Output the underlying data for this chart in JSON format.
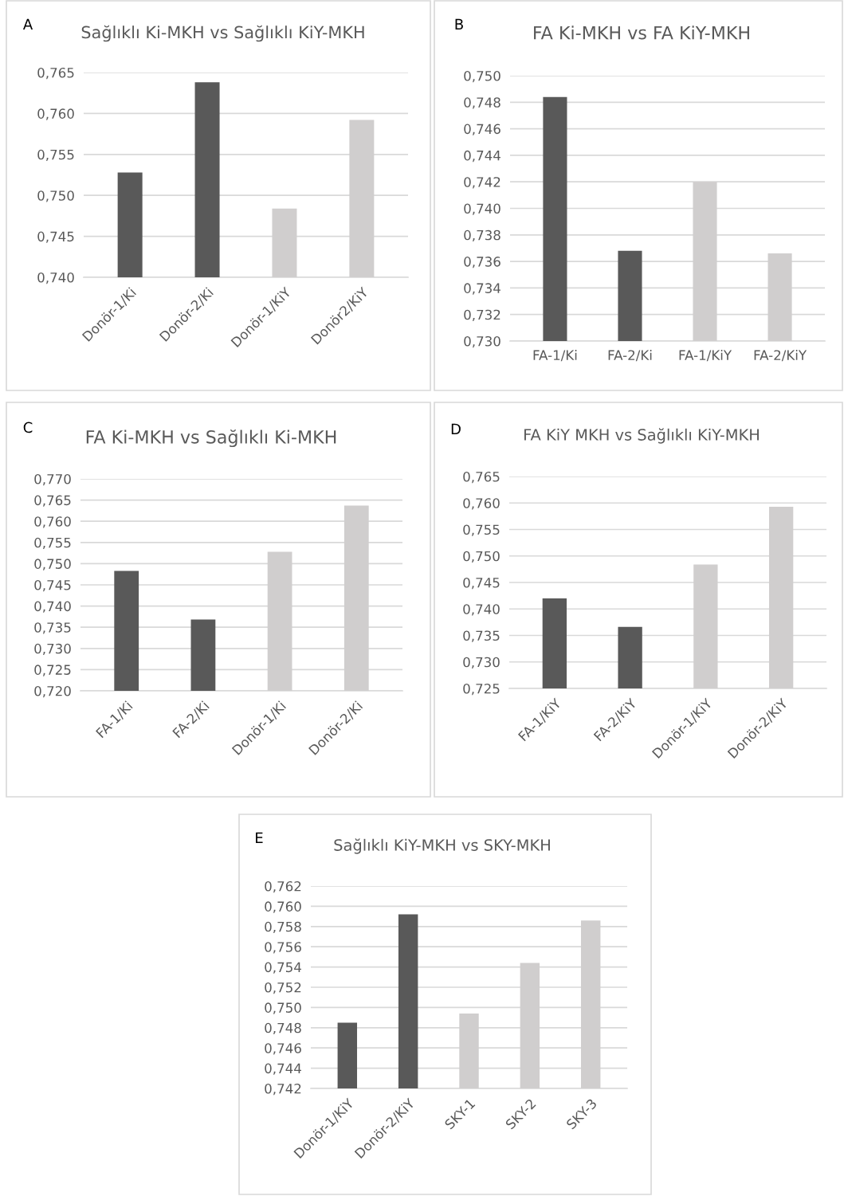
{
  "chart_data": [
    {
      "type": "bar",
      "title": "Sağlıklı Ki-MKH vs Sağlıklı KiY-MKH",
      "annotations": [
        "A"
      ],
      "categories": [
        "Donör-1/Ki",
        "Donör-2/Ki",
        "Donör-1/KiY",
        "Donör2/KiY"
      ],
      "values": [
        0.7528,
        0.7638,
        0.7484,
        0.7592
      ],
      "colors": [
        "#595959",
        "#595959",
        "#d0cece",
        "#d0cece"
      ],
      "ylim": [
        0.74,
        0.765
      ],
      "yticks": [
        {
          "value": 0.74,
          "label": "0,740"
        },
        {
          "value": 0.745,
          "label": "0,745"
        },
        {
          "value": 0.75,
          "label": "0,750"
        },
        {
          "value": 0.755,
          "label": "0,755"
        },
        {
          "value": 0.76,
          "label": "0,760"
        },
        {
          "value": 0.765,
          "label": "0,765"
        }
      ],
      "grid": "y"
    },
    {
      "type": "bar",
      "title": "FA Ki-MKH vs FA KiY-MKH",
      "annotations": [
        "B"
      ],
      "categories": [
        "FA-1/Ki",
        "FA-2/Ki",
        "FA-1/KiY",
        "FA-2/KiY"
      ],
      "values": [
        0.7484,
        0.7368,
        0.742,
        0.7366
      ],
      "colors": [
        "#595959",
        "#595959",
        "#d0cece",
        "#d0cece"
      ],
      "ylim": [
        0.73,
        0.75
      ],
      "yticks": [
        {
          "value": 0.73,
          "label": "0,730"
        },
        {
          "value": 0.732,
          "label": "0,732"
        },
        {
          "value": 0.734,
          "label": "0,734"
        },
        {
          "value": 0.736,
          "label": "0,736"
        },
        {
          "value": 0.738,
          "label": "0,738"
        },
        {
          "value": 0.74,
          "label": "0,740"
        },
        {
          "value": 0.742,
          "label": "0,742"
        },
        {
          "value": 0.744,
          "label": "0,744"
        },
        {
          "value": 0.746,
          "label": "0,746"
        },
        {
          "value": 0.748,
          "label": "0,748"
        },
        {
          "value": 0.75,
          "label": "0,750"
        }
      ],
      "grid": "y"
    },
    {
      "type": "bar",
      "title": "FA Ki-MKH vs Sağlıklı Ki-MKH",
      "annotations": [
        "C"
      ],
      "categories": [
        "FA-1/Ki",
        "FA-2/Ki",
        "Donör-1/Ki",
        "Donör-2/Ki"
      ],
      "values": [
        0.7483,
        0.7368,
        0.7528,
        0.7637
      ],
      "colors": [
        "#595959",
        "#595959",
        "#d0cece",
        "#d0cece"
      ],
      "ylim": [
        0.72,
        0.77
      ],
      "yticks": [
        {
          "value": 0.72,
          "label": "0,720"
        },
        {
          "value": 0.725,
          "label": "0,725"
        },
        {
          "value": 0.73,
          "label": "0,730"
        },
        {
          "value": 0.735,
          "label": "0,735"
        },
        {
          "value": 0.74,
          "label": "0,740"
        },
        {
          "value": 0.745,
          "label": "0,745"
        },
        {
          "value": 0.75,
          "label": "0,750"
        },
        {
          "value": 0.755,
          "label": "0,755"
        },
        {
          "value": 0.76,
          "label": "0,760"
        },
        {
          "value": 0.765,
          "label": "0,765"
        },
        {
          "value": 0.77,
          "label": "0,770"
        }
      ],
      "grid": "y"
    },
    {
      "type": "bar",
      "title": "FA KiY MKH vs Sağlıklı KiY-MKH",
      "annotations": [
        "D"
      ],
      "categories": [
        "FA-1/KiY",
        "FA-2/KiY",
        "Donör-1/KiY",
        "Donör-2/KiY"
      ],
      "values": [
        0.742,
        0.7366,
        0.7484,
        0.7593
      ],
      "colors": [
        "#595959",
        "#595959",
        "#d0cece",
        "#d0cece"
      ],
      "ylim": [
        0.725,
        0.765
      ],
      "yticks": [
        {
          "value": 0.725,
          "label": "0,725"
        },
        {
          "value": 0.73,
          "label": "0,730"
        },
        {
          "value": 0.735,
          "label": "0,735"
        },
        {
          "value": 0.74,
          "label": "0,740"
        },
        {
          "value": 0.745,
          "label": "0,745"
        },
        {
          "value": 0.75,
          "label": "0,750"
        },
        {
          "value": 0.755,
          "label": "0,755"
        },
        {
          "value": 0.76,
          "label": "0,760"
        },
        {
          "value": 0.765,
          "label": "0,765"
        }
      ],
      "grid": "y"
    },
    {
      "type": "bar",
      "title": "Sağlıklı KiY-MKH vs SKY-MKH",
      "annotations": [
        "E"
      ],
      "categories": [
        "Donör-1/KiY",
        "Donör-2/KiY",
        "SKY-1",
        "SKY-2",
        "SKY-3"
      ],
      "values": [
        0.7485,
        0.7592,
        0.7494,
        0.7544,
        0.7586
      ],
      "colors": [
        "#595959",
        "#595959",
        "#d0cece",
        "#d0cece",
        "#d0cece"
      ],
      "ylim": [
        0.742,
        0.762
      ],
      "yticks": [
        {
          "value": 0.742,
          "label": "0,742"
        },
        {
          "value": 0.744,
          "label": "0,744"
        },
        {
          "value": 0.746,
          "label": "0,746"
        },
        {
          "value": 0.748,
          "label": "0,748"
        },
        {
          "value": 0.75,
          "label": "0,750"
        },
        {
          "value": 0.752,
          "label": "0,752"
        },
        {
          "value": 0.754,
          "label": "0,754"
        },
        {
          "value": 0.756,
          "label": "0,756"
        },
        {
          "value": 0.758,
          "label": "0,758"
        },
        {
          "value": 0.76,
          "label": "0,760"
        },
        {
          "value": 0.762,
          "label": "0,762"
        }
      ],
      "grid": "y"
    }
  ]
}
